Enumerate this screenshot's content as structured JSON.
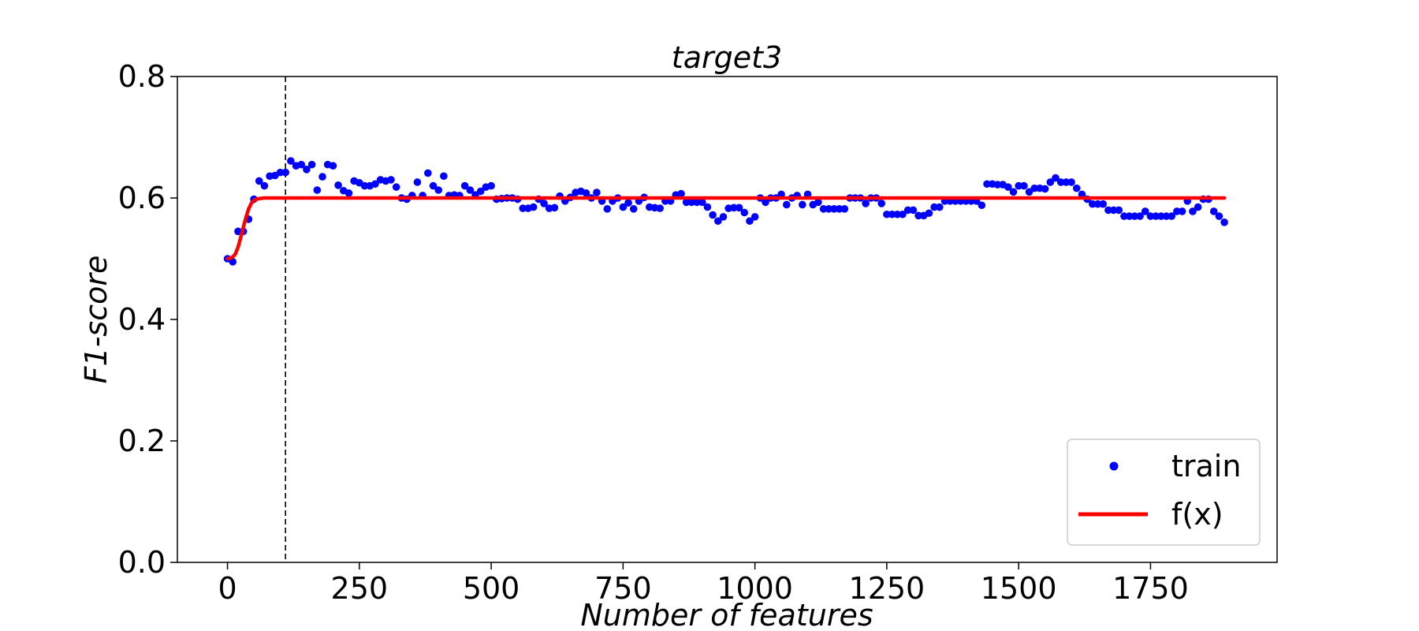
{
  "chart_data": {
    "type": "scatter",
    "title": "target3",
    "xlabel": "Number of features",
    "ylabel": "F1-score",
    "xlim": [
      -95,
      1990
    ],
    "ylim": [
      0.0,
      0.8
    ],
    "xticks": [
      0,
      250,
      500,
      750,
      1000,
      1250,
      1500,
      1750
    ],
    "yticks": [
      0.0,
      0.2,
      0.4,
      0.6,
      0.8
    ],
    "xtick_labels": [
      "0",
      "250",
      "500",
      "750",
      "1000",
      "1250",
      "1500",
      "1750"
    ],
    "ytick_labels": [
      "0.0",
      "0.2",
      "0.4",
      "0.6",
      "0.8"
    ],
    "grid": false,
    "legend": {
      "placement": "lower-right",
      "entries": [
        "train",
        "f(x)"
      ]
    },
    "vline_x": 110,
    "series": [
      {
        "name": "train",
        "kind": "scatter",
        "color": "#0000ff",
        "points": [
          [
            0,
            0.5
          ],
          [
            10,
            0.495
          ],
          [
            20,
            0.545
          ],
          [
            30,
            0.545
          ],
          [
            40,
            0.565
          ],
          [
            50,
            0.598
          ],
          [
            60,
            0.628
          ],
          [
            70,
            0.62
          ],
          [
            80,
            0.636
          ],
          [
            90,
            0.637
          ],
          [
            100,
            0.642
          ],
          [
            110,
            0.642
          ],
          [
            120,
            0.661
          ],
          [
            130,
            0.653
          ],
          [
            140,
            0.655
          ],
          [
            150,
            0.647
          ],
          [
            160,
            0.655
          ],
          [
            170,
            0.613
          ],
          [
            180,
            0.635
          ],
          [
            190,
            0.655
          ],
          [
            200,
            0.653
          ],
          [
            210,
            0.621
          ],
          [
            220,
            0.612
          ],
          [
            230,
            0.608
          ],
          [
            240,
            0.628
          ],
          [
            250,
            0.625
          ],
          [
            260,
            0.62
          ],
          [
            270,
            0.62
          ],
          [
            280,
            0.623
          ],
          [
            290,
            0.63
          ],
          [
            300,
            0.628
          ],
          [
            310,
            0.63
          ],
          [
            320,
            0.618
          ],
          [
            330,
            0.6
          ],
          [
            340,
            0.598
          ],
          [
            350,
            0.604
          ],
          [
            360,
            0.626
          ],
          [
            370,
            0.604
          ],
          [
            380,
            0.641
          ],
          [
            390,
            0.62
          ],
          [
            400,
            0.613
          ],
          [
            410,
            0.636
          ],
          [
            420,
            0.604
          ],
          [
            430,
            0.605
          ],
          [
            440,
            0.604
          ],
          [
            450,
            0.62
          ],
          [
            460,
            0.613
          ],
          [
            470,
            0.605
          ],
          [
            480,
            0.611
          ],
          [
            490,
            0.618
          ],
          [
            500,
            0.62
          ],
          [
            510,
            0.598
          ],
          [
            520,
            0.599
          ],
          [
            530,
            0.6
          ],
          [
            540,
            0.6
          ],
          [
            550,
            0.598
          ],
          [
            560,
            0.583
          ],
          [
            570,
            0.583
          ],
          [
            580,
            0.585
          ],
          [
            590,
            0.598
          ],
          [
            600,
            0.591
          ],
          [
            610,
            0.583
          ],
          [
            620,
            0.584
          ],
          [
            630,
            0.603
          ],
          [
            640,
            0.595
          ],
          [
            650,
            0.601
          ],
          [
            660,
            0.609
          ],
          [
            670,
            0.611
          ],
          [
            680,
            0.608
          ],
          [
            690,
            0.6
          ],
          [
            700,
            0.609
          ],
          [
            710,
            0.595
          ],
          [
            720,
            0.582
          ],
          [
            730,
            0.595
          ],
          [
            740,
            0.6
          ],
          [
            750,
            0.585
          ],
          [
            760,
            0.592
          ],
          [
            770,
            0.582
          ],
          [
            780,
            0.595
          ],
          [
            790,
            0.601
          ],
          [
            800,
            0.585
          ],
          [
            810,
            0.584
          ],
          [
            820,
            0.583
          ],
          [
            830,
            0.595
          ],
          [
            840,
            0.595
          ],
          [
            850,
            0.605
          ],
          [
            860,
            0.607
          ],
          [
            870,
            0.593
          ],
          [
            880,
            0.593
          ],
          [
            890,
            0.593
          ],
          [
            900,
            0.593
          ],
          [
            910,
            0.585
          ],
          [
            920,
            0.572
          ],
          [
            930,
            0.562
          ],
          [
            940,
            0.569
          ],
          [
            950,
            0.583
          ],
          [
            960,
            0.584
          ],
          [
            970,
            0.584
          ],
          [
            980,
            0.576
          ],
          [
            990,
            0.562
          ],
          [
            1000,
            0.569
          ],
          [
            1010,
            0.6
          ],
          [
            1020,
            0.593
          ],
          [
            1030,
            0.6
          ],
          [
            1040,
            0.6
          ],
          [
            1050,
            0.606
          ],
          [
            1060,
            0.589
          ],
          [
            1070,
            0.6
          ],
          [
            1080,
            0.604
          ],
          [
            1090,
            0.589
          ],
          [
            1100,
            0.606
          ],
          [
            1110,
            0.589
          ],
          [
            1120,
            0.593
          ],
          [
            1130,
            0.582
          ],
          [
            1140,
            0.582
          ],
          [
            1150,
            0.582
          ],
          [
            1160,
            0.582
          ],
          [
            1170,
            0.582
          ],
          [
            1180,
            0.6
          ],
          [
            1190,
            0.6
          ],
          [
            1200,
            0.6
          ],
          [
            1210,
            0.591
          ],
          [
            1220,
            0.6
          ],
          [
            1230,
            0.6
          ],
          [
            1240,
            0.591
          ],
          [
            1250,
            0.573
          ],
          [
            1260,
            0.573
          ],
          [
            1270,
            0.573
          ],
          [
            1280,
            0.573
          ],
          [
            1290,
            0.58
          ],
          [
            1300,
            0.58
          ],
          [
            1310,
            0.571
          ],
          [
            1320,
            0.571
          ],
          [
            1330,
            0.575
          ],
          [
            1340,
            0.585
          ],
          [
            1350,
            0.585
          ],
          [
            1360,
            0.595
          ],
          [
            1370,
            0.595
          ],
          [
            1380,
            0.595
          ],
          [
            1390,
            0.595
          ],
          [
            1400,
            0.595
          ],
          [
            1410,
            0.595
          ],
          [
            1420,
            0.595
          ],
          [
            1430,
            0.588
          ],
          [
            1440,
            0.623
          ],
          [
            1450,
            0.623
          ],
          [
            1460,
            0.622
          ],
          [
            1470,
            0.622
          ],
          [
            1480,
            0.618
          ],
          [
            1490,
            0.61
          ],
          [
            1500,
            0.62
          ],
          [
            1510,
            0.62
          ],
          [
            1520,
            0.61
          ],
          [
            1530,
            0.616
          ],
          [
            1540,
            0.616
          ],
          [
            1550,
            0.615
          ],
          [
            1560,
            0.626
          ],
          [
            1570,
            0.633
          ],
          [
            1580,
            0.626
          ],
          [
            1590,
            0.626
          ],
          [
            1600,
            0.626
          ],
          [
            1610,
            0.616
          ],
          [
            1620,
            0.606
          ],
          [
            1630,
            0.598
          ],
          [
            1640,
            0.59
          ],
          [
            1650,
            0.59
          ],
          [
            1660,
            0.59
          ],
          [
            1670,
            0.58
          ],
          [
            1680,
            0.58
          ],
          [
            1690,
            0.58
          ],
          [
            1700,
            0.57
          ],
          [
            1710,
            0.57
          ],
          [
            1720,
            0.57
          ],
          [
            1730,
            0.57
          ],
          [
            1740,
            0.578
          ],
          [
            1750,
            0.57
          ],
          [
            1760,
            0.57
          ],
          [
            1770,
            0.57
          ],
          [
            1780,
            0.57
          ],
          [
            1790,
            0.57
          ],
          [
            1800,
            0.578
          ],
          [
            1810,
            0.578
          ],
          [
            1820,
            0.595
          ],
          [
            1830,
            0.578
          ],
          [
            1840,
            0.585
          ],
          [
            1850,
            0.598
          ],
          [
            1860,
            0.598
          ],
          [
            1870,
            0.578
          ],
          [
            1880,
            0.57
          ],
          [
            1890,
            0.56
          ]
        ]
      },
      {
        "name": "f(x)",
        "kind": "line",
        "color": "#ff0000",
        "points": [
          [
            0,
            0.5
          ],
          [
            5,
            0.501
          ],
          [
            10,
            0.503
          ],
          [
            15,
            0.508
          ],
          [
            20,
            0.519
          ],
          [
            25,
            0.535
          ],
          [
            30,
            0.552
          ],
          [
            35,
            0.568
          ],
          [
            40,
            0.582
          ],
          [
            45,
            0.591
          ],
          [
            50,
            0.596
          ],
          [
            55,
            0.598
          ],
          [
            60,
            0.599
          ],
          [
            70,
            0.6
          ],
          [
            80,
            0.6
          ],
          [
            100,
            0.6
          ],
          [
            1890,
            0.6
          ]
        ]
      }
    ]
  }
}
